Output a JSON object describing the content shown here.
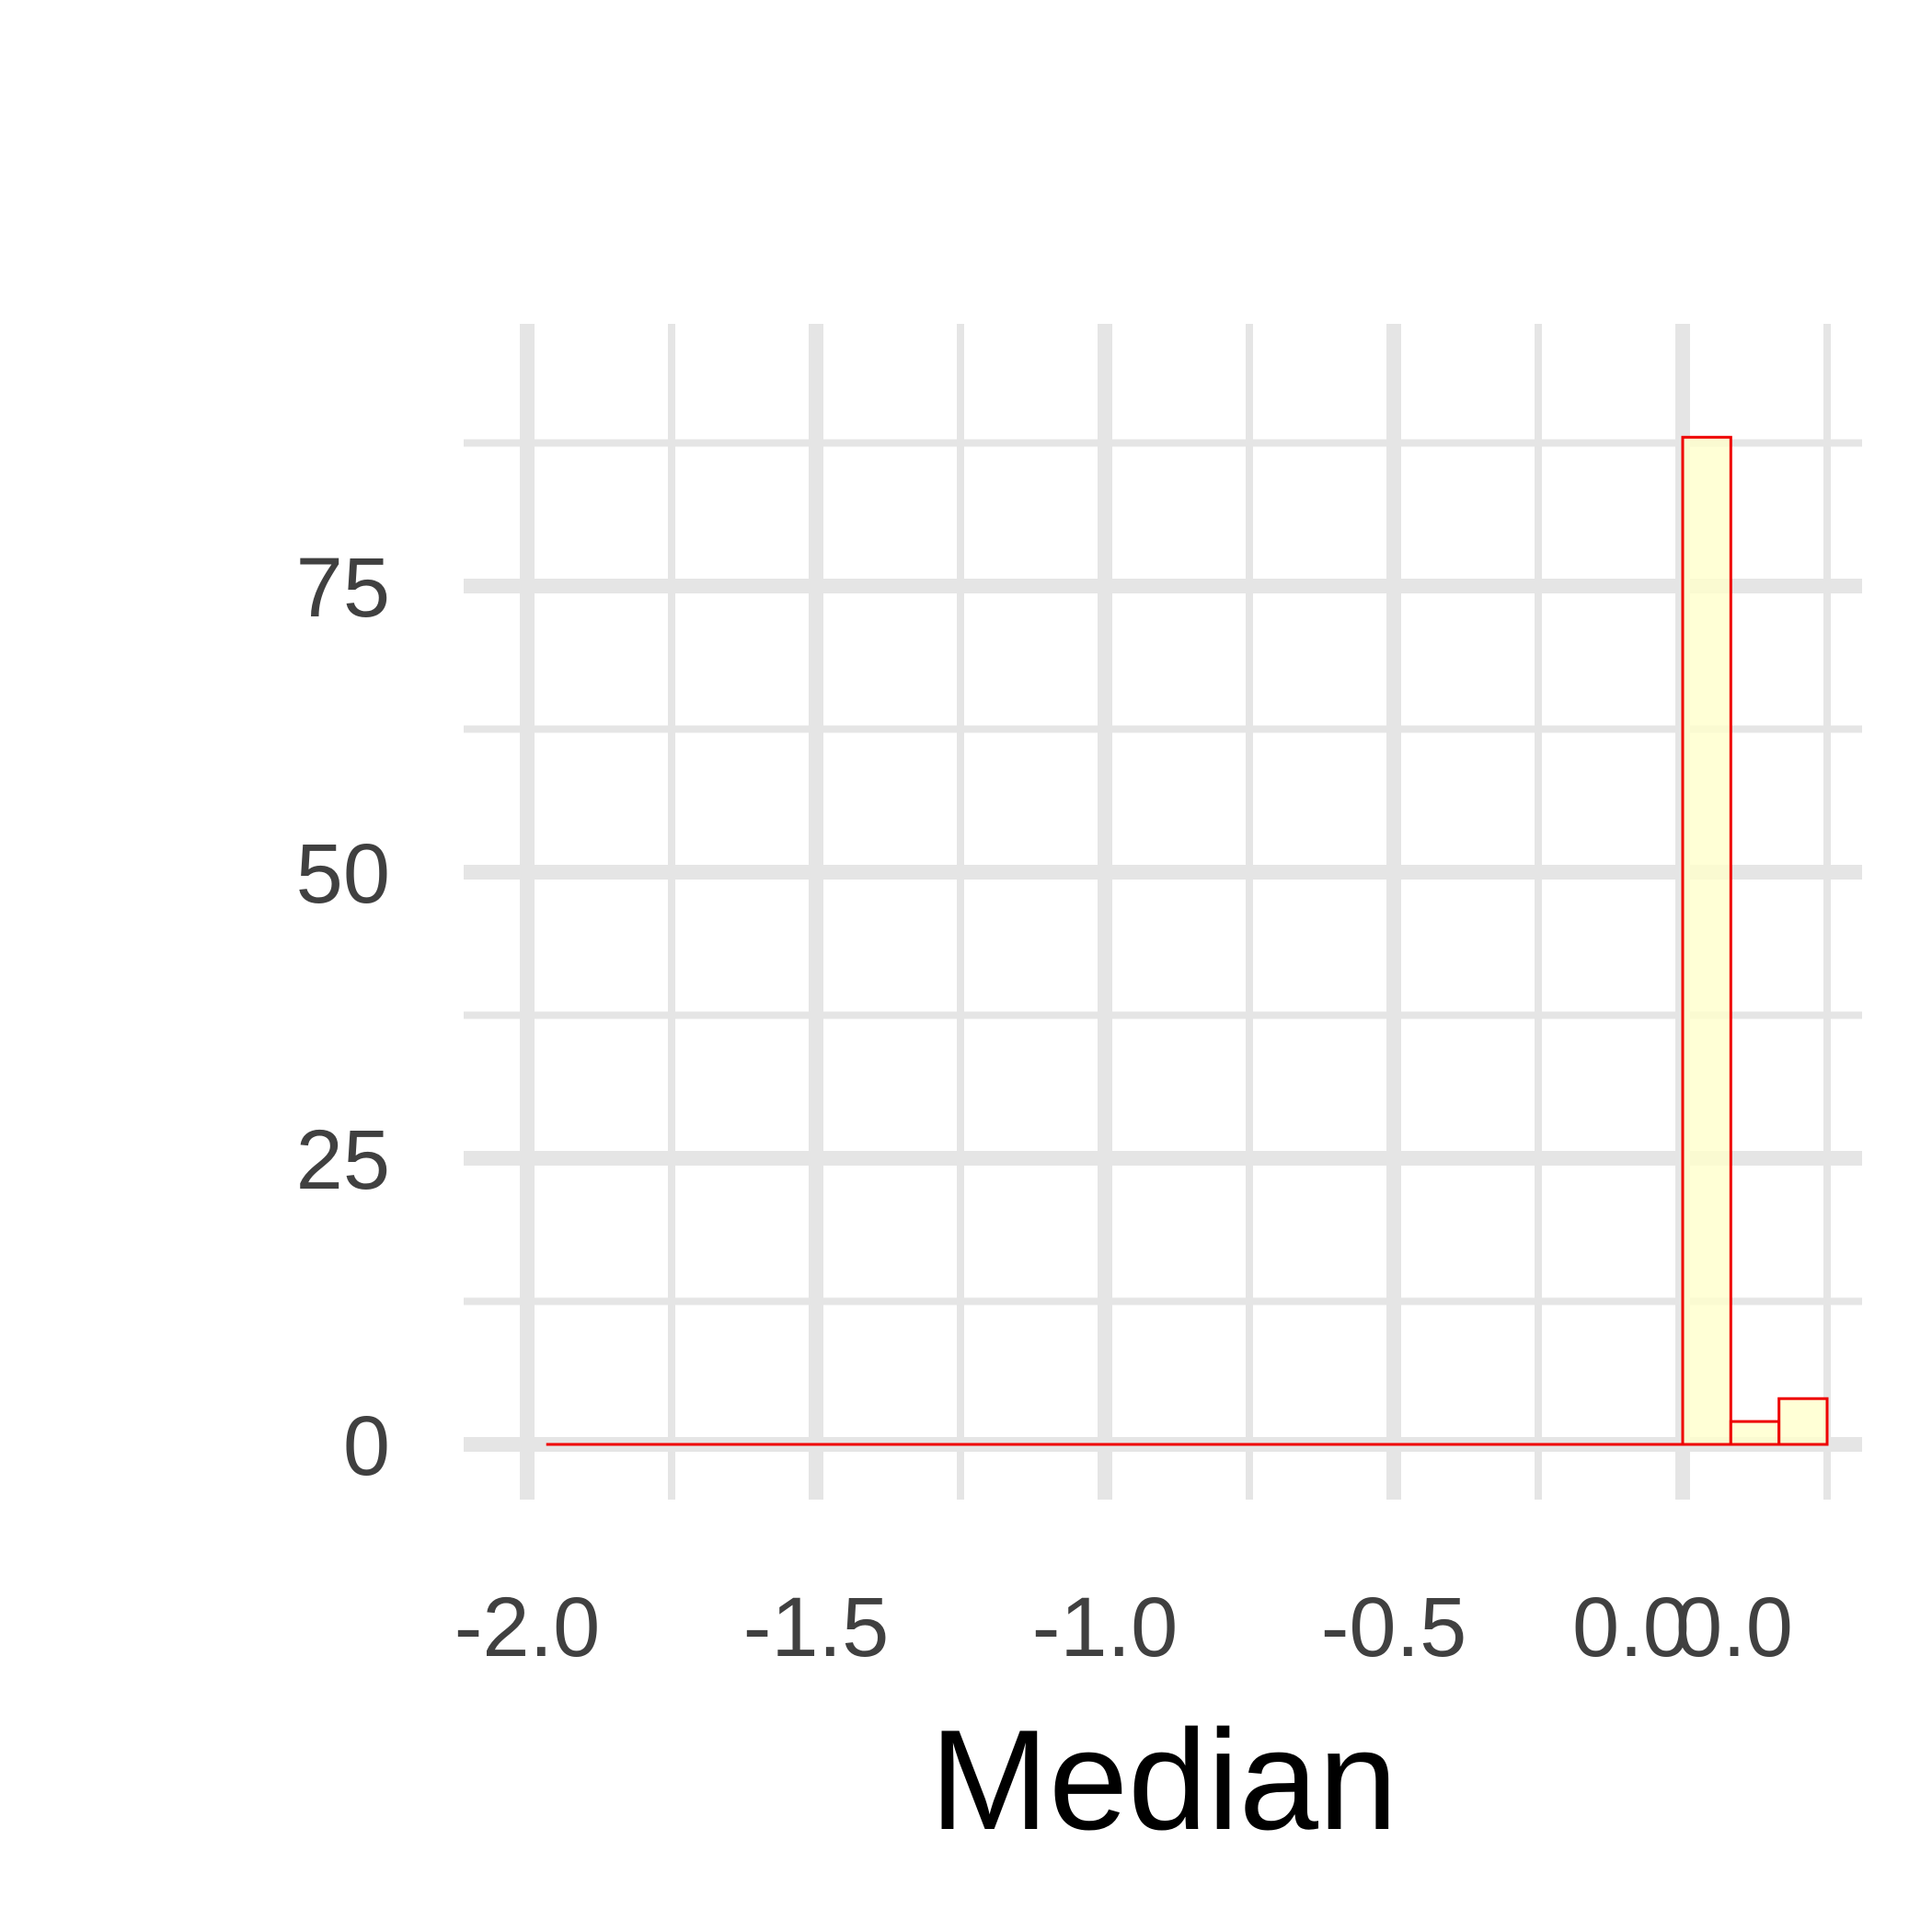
{
  "chart_data": {
    "type": "bar",
    "title": "",
    "xlabel": "Median",
    "ylabel": "",
    "xlim": [
      -2.0,
      0.2
    ],
    "ylim": [
      0,
      92
    ],
    "x_tick_labels": [
      "-2.0",
      "-1.5",
      "-1.0",
      "-0.5",
      "0.0",
      "0.0"
    ],
    "y_ticks": [
      0,
      25,
      50,
      75
    ],
    "y_tick_labels": [
      "0",
      "25",
      "50",
      "75"
    ],
    "grid": true,
    "legend": "none",
    "bins": [
      {
        "x0": -1.967,
        "x1": 0.0,
        "count": 0
      },
      {
        "x0": 0.0,
        "x1": 0.0833,
        "count": 88
      },
      {
        "x0": 0.0833,
        "x1": 0.1667,
        "count": 2
      },
      {
        "x0": 0.1667,
        "x1": 0.25,
        "count": 4
      }
    ],
    "colors": {
      "bar_fill": "#ffffcc",
      "bar_stroke": "#ee0000",
      "grid": "#e5e5e5",
      "background": "#ffffff"
    }
  }
}
